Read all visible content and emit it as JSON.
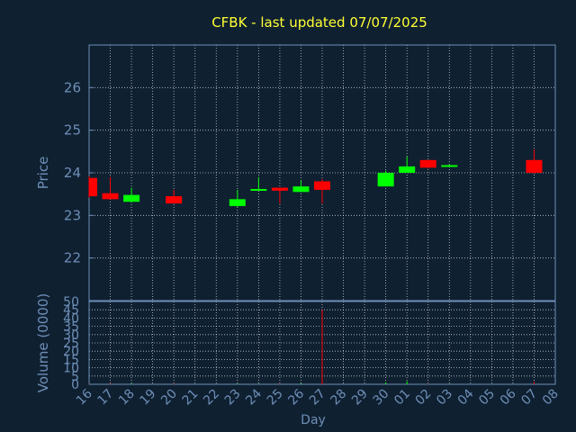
{
  "chart_data": {
    "type": "candlestick",
    "title": "CFBK - last updated 07/07/2025",
    "price_axis_label": "Price",
    "volume_axis_label": "Volume (0000)",
    "x_axis_label": "Day",
    "price_ylim": [
      21,
      27
    ],
    "price_ticks": [
      "22",
      "23",
      "24",
      "25",
      "26"
    ],
    "volume_ylim": [
      0,
      50
    ],
    "volume_ticks": [
      "0",
      "5",
      "10",
      "15",
      "20",
      "25",
      "30",
      "35",
      "40",
      "45",
      "50"
    ],
    "x_ticks": [
      "16",
      "17",
      "18",
      "19",
      "20",
      "21",
      "22",
      "23",
      "24",
      "25",
      "26",
      "27",
      "28",
      "29",
      "30",
      "01",
      "02",
      "03",
      "04",
      "05",
      "06",
      "07",
      "08"
    ],
    "grid": true,
    "up_color": "#00ff00",
    "down_color": "#ff0000",
    "candles": [
      {
        "x": "16",
        "open": 23.88,
        "high": 23.92,
        "low": 23.42,
        "close": 23.45,
        "volume": 0.3
      },
      {
        "x": "17",
        "open": 23.52,
        "high": 23.9,
        "low": 23.38,
        "close": 23.38,
        "volume": 0.6
      },
      {
        "x": "18",
        "open": 23.32,
        "high": 23.65,
        "low": 23.3,
        "close": 23.48,
        "volume": 0.4
      },
      {
        "x": "20",
        "open": 23.45,
        "high": 23.6,
        "low": 23.28,
        "close": 23.28,
        "volume": 0.5
      },
      {
        "x": "23",
        "open": 23.22,
        "high": 23.6,
        "low": 23.2,
        "close": 23.38,
        "volume": 0.4
      },
      {
        "x": "24",
        "open": 23.58,
        "high": 23.9,
        "low": 23.58,
        "close": 23.62,
        "volume": 0.3
      },
      {
        "x": "25",
        "open": 23.65,
        "high": 23.65,
        "low": 23.28,
        "close": 23.58,
        "volume": 0.4
      },
      {
        "x": "26",
        "open": 23.55,
        "high": 23.82,
        "low": 23.55,
        "close": 23.68,
        "volume": 0.5
      },
      {
        "x": "27",
        "open": 23.8,
        "high": 23.85,
        "low": 23.28,
        "close": 23.6,
        "volume": 45.0
      },
      {
        "x": "30",
        "open": 23.68,
        "high": 24.05,
        "low": 23.68,
        "close": 24.0,
        "volume": 1.2
      },
      {
        "x": "01",
        "open": 24.0,
        "high": 24.38,
        "low": 24.0,
        "close": 24.15,
        "volume": 1.8
      },
      {
        "x": "02",
        "open": 24.3,
        "high": 24.3,
        "low": 24.1,
        "close": 24.12,
        "volume": 0.3
      },
      {
        "x": "03",
        "open": 24.15,
        "high": 24.2,
        "low": 24.15,
        "close": 24.18,
        "volume": 0.2
      },
      {
        "x": "07",
        "open": 24.3,
        "high": 24.55,
        "low": 23.98,
        "close": 24.0,
        "volume": 1.5
      }
    ]
  }
}
